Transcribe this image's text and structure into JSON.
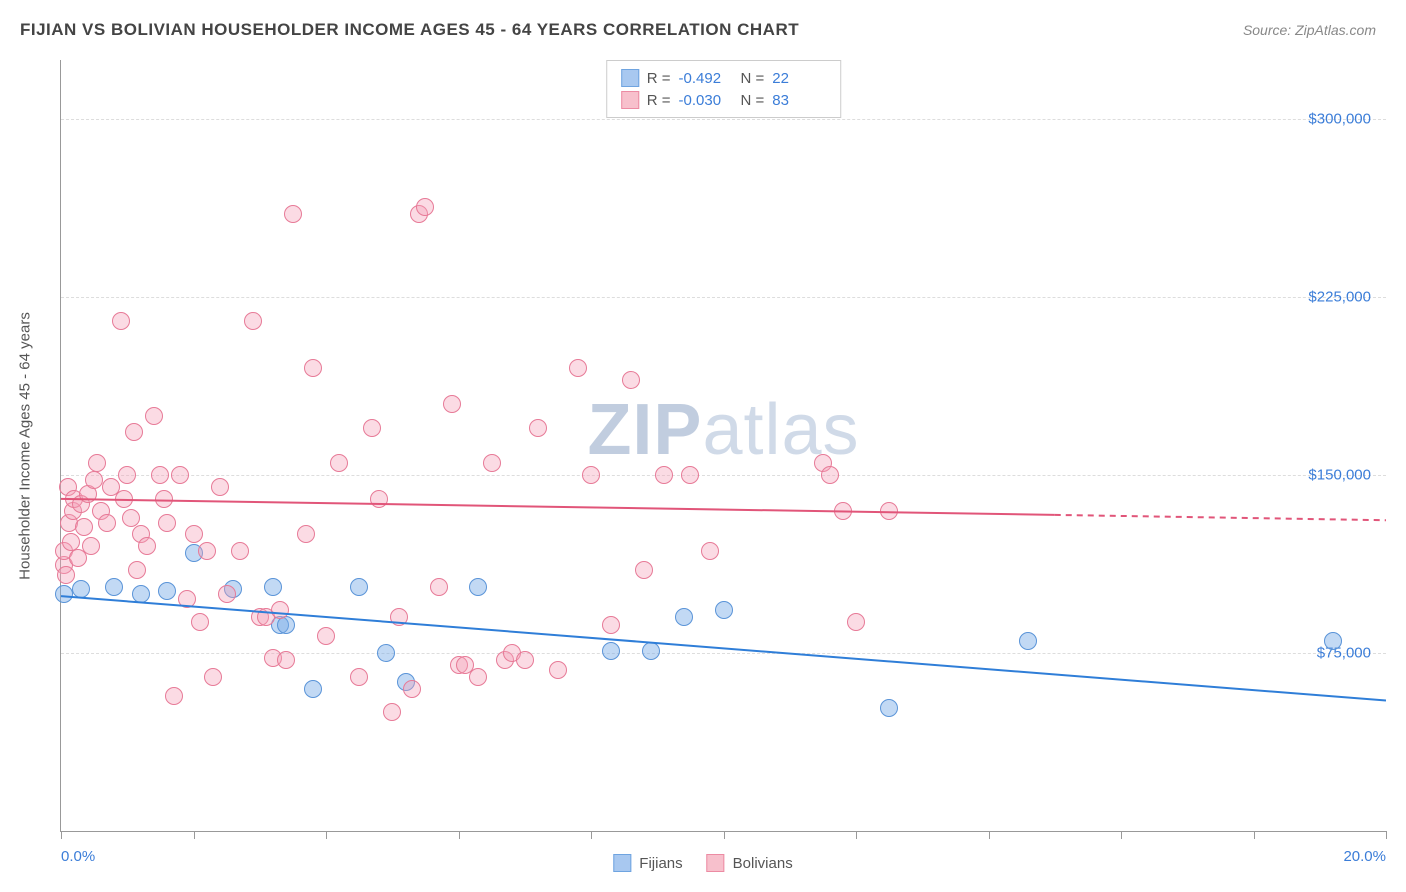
{
  "title": "FIJIAN VS BOLIVIAN HOUSEHOLDER INCOME AGES 45 - 64 YEARS CORRELATION CHART",
  "source": "Source: ZipAtlas.com",
  "watermark_a": "ZIP",
  "watermark_b": "atlas",
  "chart": {
    "type": "scatter",
    "ylabel": "Householder Income Ages 45 - 64 years",
    "xlim": [
      0.0,
      20.0
    ],
    "ylim": [
      0,
      325000
    ],
    "xaxis_min_label": "0.0%",
    "xaxis_max_label": "20.0%",
    "ytick_values": [
      75000,
      150000,
      225000,
      300000
    ],
    "ytick_labels": [
      "$75,000",
      "$150,000",
      "$225,000",
      "$300,000"
    ],
    "xtick_positions": [
      0,
      2,
      4,
      6,
      8,
      10,
      12,
      14,
      16,
      18,
      20
    ],
    "background_color": "#ffffff",
    "grid_color": "#dddddd",
    "axis_color": "#999999",
    "label_color": "#555555",
    "value_color": "#3b7dd8",
    "point_radius": 9,
    "point_opacity": 0.55,
    "stats": [
      {
        "r_label": "R =",
        "r": "-0.492",
        "n_label": "N =",
        "n": "22",
        "fill": "#a8c8f0",
        "stroke": "#6fa4e0"
      },
      {
        "r_label": "R =",
        "r": "-0.030",
        "n_label": "N =",
        "n": "83",
        "fill": "#f7c0cc",
        "stroke": "#ec8ba3"
      }
    ],
    "legend": [
      {
        "label": "Fijians",
        "fill": "#a8c8f0",
        "stroke": "#6fa4e0"
      },
      {
        "label": "Bolivians",
        "fill": "#f7c0cc",
        "stroke": "#ec8ba3"
      }
    ],
    "series": [
      {
        "name": "Fijians",
        "fill": "rgba(120,170,230,0.45)",
        "stroke": "#5a94d8",
        "line_color": "#2f7ed8",
        "line_width": 2,
        "regression": {
          "x1": 0.0,
          "y1": 99000,
          "x2": 20.0,
          "y2": 55000,
          "dash_from_x": null
        },
        "points": [
          [
            0.05,
            100000
          ],
          [
            0.3,
            102000
          ],
          [
            0.8,
            103000
          ],
          [
            1.2,
            100000
          ],
          [
            1.6,
            101000
          ],
          [
            2.0,
            117000
          ],
          [
            2.6,
            102000
          ],
          [
            3.2,
            103000
          ],
          [
            3.3,
            87000
          ],
          [
            3.4,
            87000
          ],
          [
            3.8,
            60000
          ],
          [
            4.9,
            75000
          ],
          [
            4.5,
            103000
          ],
          [
            5.2,
            63000
          ],
          [
            6.3,
            103000
          ],
          [
            8.3,
            76000
          ],
          [
            8.9,
            76000
          ],
          [
            9.4,
            90000
          ],
          [
            10.0,
            93000
          ],
          [
            12.5,
            52000
          ],
          [
            14.6,
            80000
          ],
          [
            19.2,
            80000
          ]
        ]
      },
      {
        "name": "Bolivians",
        "fill": "rgba(245,160,185,0.38)",
        "stroke": "#e77a97",
        "line_color": "#e15579",
        "line_width": 2,
        "regression": {
          "x1": 0.0,
          "y1": 140000,
          "x2": 20.0,
          "y2": 131000,
          "dash_from_x": 15.0
        },
        "points": [
          [
            0.05,
            112000
          ],
          [
            0.05,
            118000
          ],
          [
            0.08,
            108000
          ],
          [
            0.1,
            145000
          ],
          [
            0.12,
            130000
          ],
          [
            0.15,
            122000
          ],
          [
            0.18,
            135000
          ],
          [
            0.2,
            140000
          ],
          [
            0.25,
            115000
          ],
          [
            0.3,
            138000
          ],
          [
            0.35,
            128000
          ],
          [
            0.4,
            142000
          ],
          [
            0.45,
            120000
          ],
          [
            0.5,
            148000
          ],
          [
            0.55,
            155000
          ],
          [
            0.6,
            135000
          ],
          [
            0.7,
            130000
          ],
          [
            0.75,
            145000
          ],
          [
            0.9,
            215000
          ],
          [
            0.95,
            140000
          ],
          [
            1.0,
            150000
          ],
          [
            1.05,
            132000
          ],
          [
            1.1,
            168000
          ],
          [
            1.15,
            110000
          ],
          [
            1.2,
            125000
          ],
          [
            1.3,
            120000
          ],
          [
            1.4,
            175000
          ],
          [
            1.5,
            150000
          ],
          [
            1.55,
            140000
          ],
          [
            1.6,
            130000
          ],
          [
            1.7,
            57000
          ],
          [
            1.8,
            150000
          ],
          [
            1.9,
            98000
          ],
          [
            2.0,
            125000
          ],
          [
            2.1,
            88000
          ],
          [
            2.2,
            118000
          ],
          [
            2.3,
            65000
          ],
          [
            2.4,
            145000
          ],
          [
            2.5,
            100000
          ],
          [
            2.7,
            118000
          ],
          [
            2.9,
            215000
          ],
          [
            3.0,
            90000
          ],
          [
            3.1,
            90000
          ],
          [
            3.2,
            73000
          ],
          [
            3.3,
            93000
          ],
          [
            3.4,
            72000
          ],
          [
            3.5,
            260000
          ],
          [
            3.7,
            125000
          ],
          [
            3.8,
            195000
          ],
          [
            4.0,
            82000
          ],
          [
            4.2,
            155000
          ],
          [
            4.5,
            65000
          ],
          [
            4.7,
            170000
          ],
          [
            4.8,
            140000
          ],
          [
            5.0,
            50000
          ],
          [
            5.1,
            90000
          ],
          [
            5.3,
            60000
          ],
          [
            5.4,
            260000
          ],
          [
            5.5,
            263000
          ],
          [
            5.7,
            103000
          ],
          [
            5.9,
            180000
          ],
          [
            6.0,
            70000
          ],
          [
            6.1,
            70000
          ],
          [
            6.3,
            65000
          ],
          [
            6.5,
            155000
          ],
          [
            6.7,
            72000
          ],
          [
            6.8,
            75000
          ],
          [
            7.0,
            72000
          ],
          [
            7.2,
            170000
          ],
          [
            7.5,
            68000
          ],
          [
            7.8,
            195000
          ],
          [
            8.0,
            150000
          ],
          [
            8.3,
            87000
          ],
          [
            8.6,
            190000
          ],
          [
            8.8,
            110000
          ],
          [
            9.1,
            150000
          ],
          [
            9.5,
            150000
          ],
          [
            9.8,
            118000
          ],
          [
            11.5,
            155000
          ],
          [
            11.6,
            150000
          ],
          [
            11.8,
            135000
          ],
          [
            12.0,
            88000
          ],
          [
            12.5,
            135000
          ]
        ]
      }
    ]
  }
}
